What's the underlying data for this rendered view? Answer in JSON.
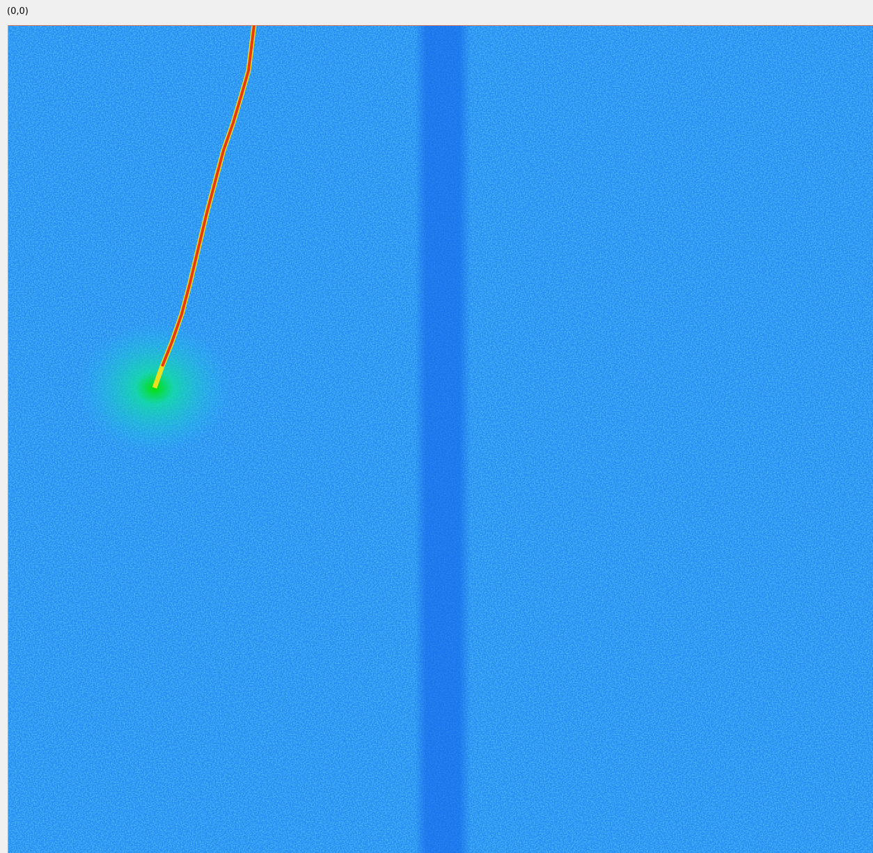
{
  "header": {
    "coordinate": "(0,0)"
  }
}
